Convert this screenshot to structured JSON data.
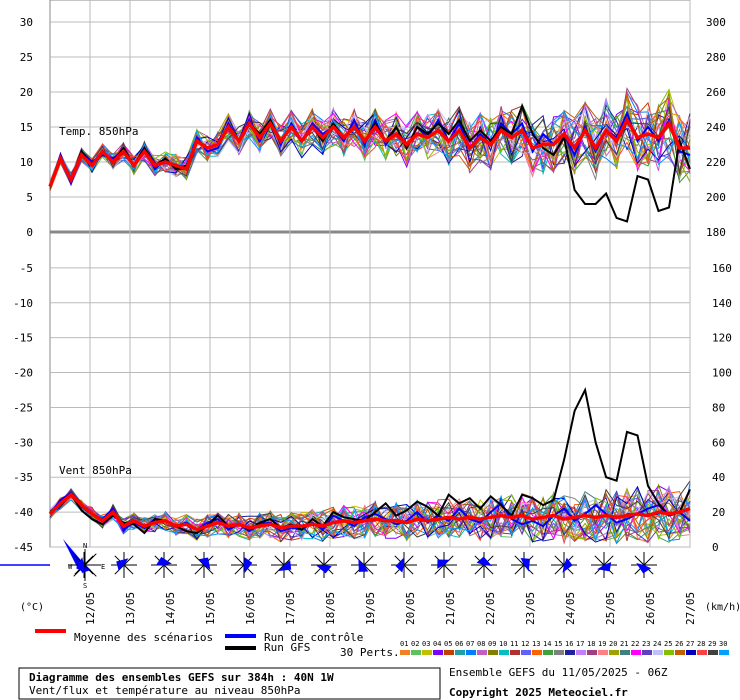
{
  "chart_data": {
    "type": "line",
    "x_dates": [
      "12/05",
      "13/05",
      "14/05",
      "15/05",
      "16/05",
      "17/05",
      "18/05",
      "19/05",
      "20/05",
      "21/05",
      "22/05",
      "23/05",
      "24/05",
      "25/05",
      "26/05",
      "27/05"
    ],
    "panels": {
      "temperature": {
        "label": "Temp. 850hPa",
        "unit_left": "(°C)",
        "left_ticks": [
          30,
          25,
          20,
          15,
          10,
          5,
          0
        ],
        "right_ticks": [
          300,
          280,
          260,
          240,
          220,
          200,
          180
        ],
        "ylim": [
          0,
          30
        ],
        "series": [
          {
            "name": "Moyenne des scénarios",
            "color": "#ff0000",
            "values": [
              6.5,
              10.5,
              7.5,
              11,
              9.5,
              11.5,
              10,
              11.5,
              9.5,
              11.5,
              9.5,
              10,
              9.5,
              9,
              13,
              12,
              12.5,
              15,
              13,
              15.5,
              13.5,
              15.5,
              13,
              15,
              13,
              15,
              13.5,
              15,
              13.5,
              15,
              13,
              15,
              13,
              14,
              12.5,
              14,
              13.5,
              14.5,
              13,
              14.5,
              12,
              13.5,
              12.5,
              14.5,
              13.5,
              14.5,
              12,
              12.5,
              12.5,
              14,
              12,
              14.5,
              12,
              14.5,
              13,
              16,
              13.5,
              14,
              13.5,
              15.5,
              12,
              12
            ]
          },
          {
            "name": "Run de contrôle",
            "color": "#0000ff",
            "values": [
              6.5,
              11,
              7,
              11.5,
              10,
              11,
              10.5,
              11.5,
              9.5,
              12,
              9,
              10.5,
              9,
              9,
              13.5,
              11.5,
              12,
              15.5,
              13,
              16,
              13,
              16,
              12.5,
              15.5,
              13,
              15.5,
              14,
              15,
              13,
              16,
              12.5,
              16,
              12.5,
              15,
              12,
              15,
              13.5,
              16,
              13,
              15.5,
              12,
              14,
              12.5,
              15.5,
              14,
              15.5,
              11.5,
              14,
              12.5,
              14,
              11,
              15,
              11.5,
              14.5,
              13.5,
              17,
              13,
              15,
              13,
              16,
              11.5,
              11
            ]
          },
          {
            "name": "Run GFS",
            "color": "#000000",
            "values": [
              6.5,
              10.5,
              7.5,
              11.5,
              9.5,
              11.5,
              10,
              12,
              9.5,
              12,
              9.5,
              10.5,
              9,
              9.5,
              13,
              12,
              12.5,
              15,
              13,
              15.5,
              14,
              16,
              13,
              15,
              13,
              15,
              13,
              15.5,
              13.5,
              15,
              13,
              15.5,
              13,
              15,
              12,
              15,
              14,
              15.5,
              14,
              16,
              13,
              14.5,
              13,
              15,
              14,
              18,
              14,
              12,
              11,
              13.5,
              6,
              4,
              4,
              5.5,
              2,
              1.5,
              8,
              7.5,
              3,
              3.5,
              13,
              9
            ]
          }
        ]
      },
      "wind": {
        "label": "Vent 850hPa",
        "unit_right": "(km/h)",
        "left_ticks": [
          -5,
          -10,
          -15,
          -20,
          -25,
          -30,
          -35,
          -40,
          -45
        ],
        "right_ticks": [
          160,
          140,
          120,
          100,
          80,
          60,
          40,
          20,
          0
        ],
        "right_ylim": [
          0,
          180
        ],
        "series": [
          {
            "name": "Moyenne des scénarios",
            "color": "#ff0000",
            "values": [
              19,
              25,
              30,
              24,
              19,
              15,
              20,
              12,
              15,
              12,
              14,
              15,
              12,
              13,
              10,
              12,
              14,
              12,
              13,
              11,
              12,
              13,
              11,
              12,
              12,
              13,
              12,
              14,
              15,
              14,
              15,
              16,
              15,
              15,
              14,
              16,
              15,
              16,
              17,
              16,
              17,
              16,
              17,
              18,
              17,
              18,
              16,
              17,
              18,
              16,
              17,
              18,
              17,
              18,
              17,
              18,
              19,
              18,
              20,
              19,
              20,
              22
            ]
          },
          {
            "name": "Run de contrôle",
            "color": "#0000ff",
            "values": [
              19,
              27,
              31,
              24,
              19,
              16,
              22,
              10,
              14,
              11,
              16,
              15,
              12,
              14,
              10,
              14,
              16,
              10,
              13,
              9,
              13,
              14,
              9,
              11,
              10,
              14,
              10,
              18,
              15,
              12,
              17,
              19,
              16,
              13,
              15,
              20,
              14,
              18,
              15,
              22,
              16,
              14,
              20,
              25,
              16,
              13,
              15,
              12,
              18,
              22,
              15,
              19,
              24,
              19,
              14,
              16,
              19,
              22,
              24,
              18,
              20,
              15
            ]
          },
          {
            "name": "Run GFS",
            "color": "#000000",
            "values": [
              20,
              24,
              30,
              21,
              16,
              13,
              18,
              14,
              13,
              8,
              16,
              15,
              12,
              9,
              8,
              12,
              18,
              12,
              13,
              10,
              14,
              16,
              11,
              13,
              10,
              16,
              12,
              20,
              17,
              16,
              15,
              20,
              25,
              18,
              21,
              26,
              23,
              18,
              30,
              25,
              28,
              22,
              29,
              24,
              18,
              30,
              28,
              24,
              27,
              50,
              78,
              90,
              60,
              40,
              38,
              66,
              64,
              35,
              25,
              18,
              20,
              33
            ]
          }
        ]
      },
      "wind_rose_dirs": [
        "N",
        "W",
        "E",
        "S"
      ]
    }
  },
  "legend": {
    "mean_label": "Moyenne des scénarios",
    "control_label": "Run de contrôle",
    "gfs_label": "Run GFS",
    "perts_label": "30 Perts.",
    "pert_numbers": [
      "01",
      "02",
      "03",
      "04",
      "05",
      "06",
      "07",
      "08",
      "09",
      "10",
      "11",
      "12",
      "13",
      "14",
      "15",
      "16",
      "17",
      "18",
      "19",
      "20",
      "21",
      "22",
      "23",
      "24",
      "25",
      "26",
      "27",
      "28",
      "29",
      "30"
    ],
    "pert_colors": [
      "#f08020",
      "#60c060",
      "#c0c000",
      "#8000ff",
      "#c04000",
      "#20a0a0",
      "#0080ff",
      "#c060c0",
      "#808000",
      "#00c0c0",
      "#b03030",
      "#6060ff",
      "#ff6000",
      "#40a040",
      "#808080",
      "#2020a0",
      "#c080ff",
      "#a04080",
      "#ff8080",
      "#a0a000",
      "#408080",
      "#ff00ff",
      "#6040c0",
      "#c0c0ff",
      "#80c000",
      "#c06000",
      "#0000c0",
      "#ff4040",
      "#404040",
      "#00a0ff"
    ]
  },
  "footer": {
    "title": "Diagramme des ensembles GEFS sur 384h : 40N 1W",
    "subtitle": "Vent/flux et température au niveau 850hPa",
    "run_info": "Ensemble GEFS du 11/05/2025 - 06Z",
    "copyright": "Copyright 2025 Meteociel.fr"
  }
}
